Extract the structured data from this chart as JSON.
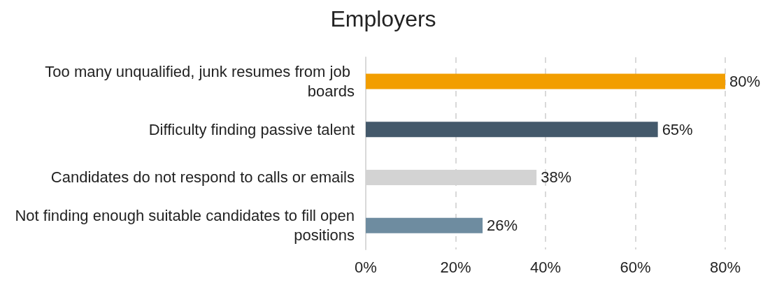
{
  "chart_data": {
    "type": "bar",
    "orientation": "horizontal",
    "title": "Employers",
    "categories": [
      "Too many unqualified, junk resumes from job boards",
      "Difficulty finding passive talent",
      "Candidates do not respond to calls or emails",
      "Not finding enough suitable candidates to fill open positions"
    ],
    "values": [
      80,
      65,
      38,
      26
    ],
    "value_labels": [
      "80%",
      "65%",
      "38%",
      "26%"
    ],
    "colors": [
      "#f29e00",
      "#44596b",
      "#d3d3d3",
      "#6e8ca0"
    ],
    "xlim": [
      0,
      80
    ],
    "xticks": [
      {
        "value": 0,
        "label": "0%"
      },
      {
        "value": 20,
        "label": "20%"
      },
      {
        "value": 40,
        "label": "40%"
      },
      {
        "value": 60,
        "label": "60%"
      },
      {
        "value": 80,
        "label": "80%"
      }
    ],
    "grid": "x"
  }
}
